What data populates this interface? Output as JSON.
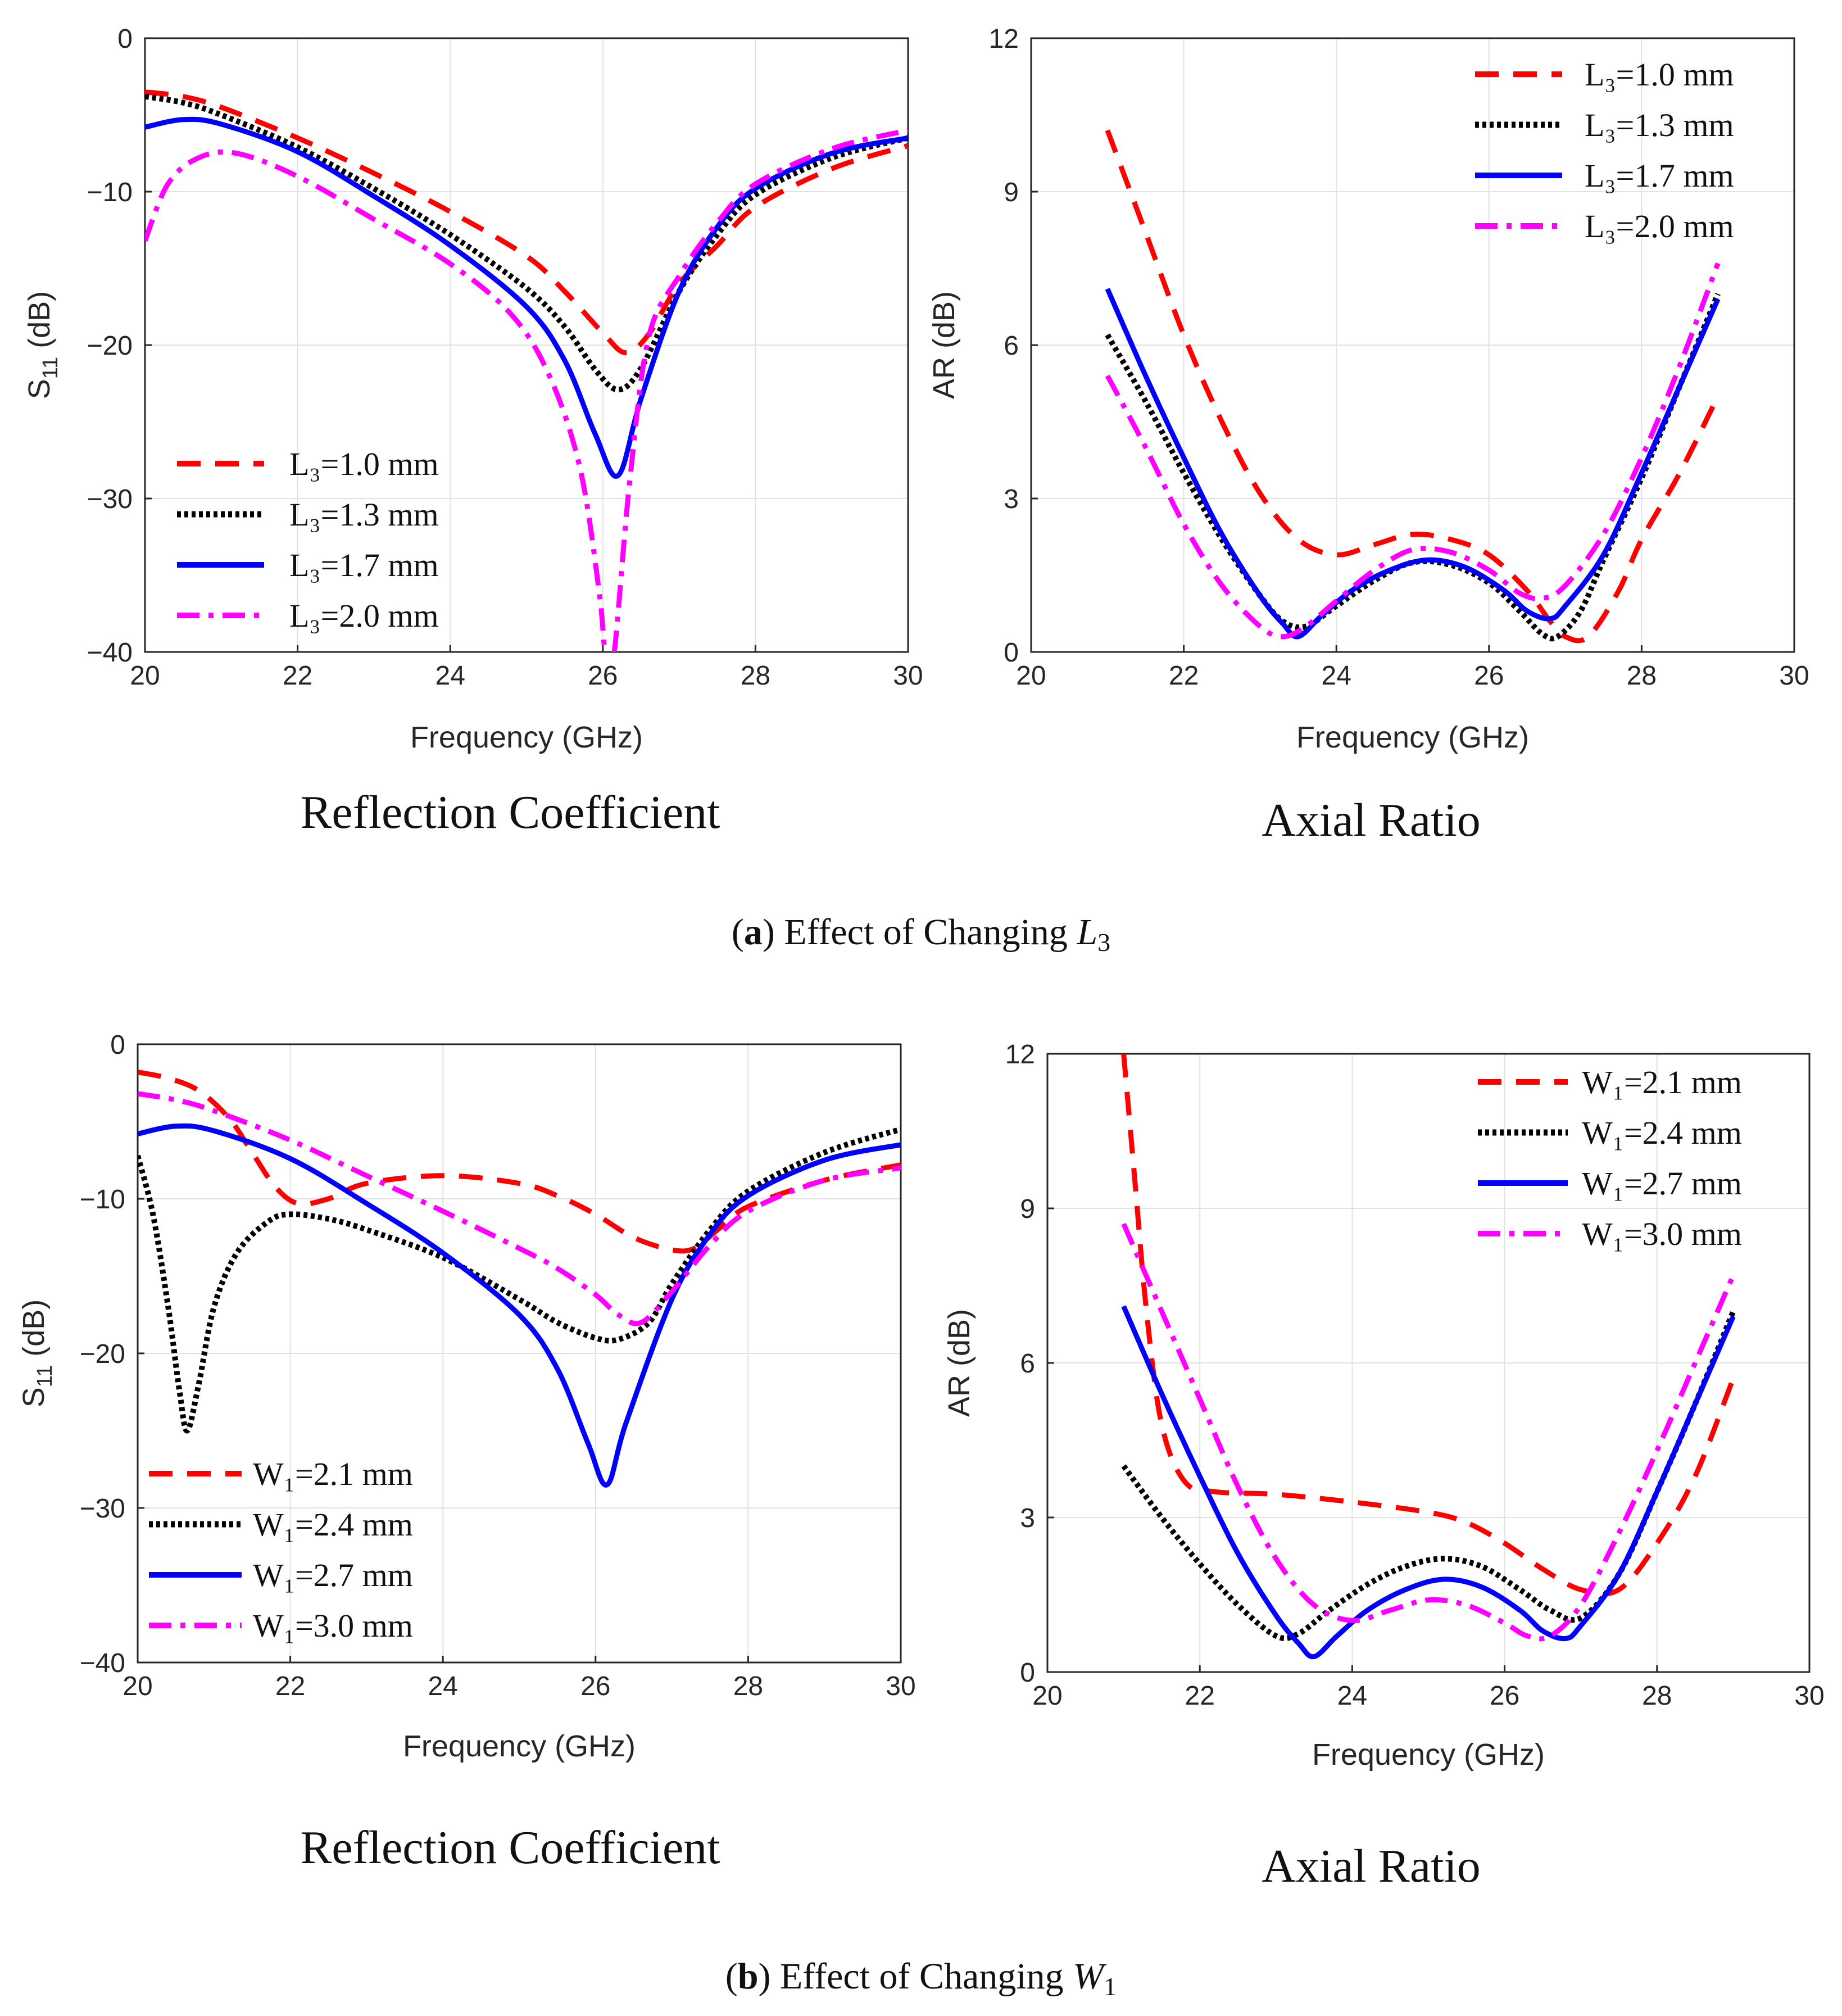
{
  "chart_data": [
    {
      "type": "line",
      "panel": "a-left",
      "title": "Reflection Coefficient",
      "xlabel": "Frequency (GHz)",
      "ylabel_main": "S",
      "ylabel_sub": "11",
      "ylabel_tail": " (dB)",
      "xlim": [
        20,
        30
      ],
      "ylim": [
        -40,
        0
      ],
      "xticks": [
        20,
        22,
        24,
        26,
        28,
        30
      ],
      "yticks": [
        0,
        -10,
        -20,
        -30,
        -40
      ],
      "xtick_labels": [
        "20",
        "22",
        "24",
        "26",
        "28",
        "30"
      ],
      "ytick_labels": [
        "0",
        "−10",
        "−20",
        "−30",
        "−40"
      ],
      "grid": true,
      "legend_position": "bottom-left",
      "series": [
        {
          "name": "L₃=1.0 mm",
          "color": "#ff0000",
          "style": "dashed",
          "x": [
            20,
            20.5,
            21,
            22,
            23,
            24,
            25,
            25.5,
            26,
            26.3,
            26.6,
            27,
            27.5,
            28,
            29,
            30
          ],
          "values": [
            -3.5,
            -3.8,
            -4.5,
            -6.5,
            -8.8,
            -11.3,
            -14.2,
            -16.5,
            -19.2,
            -20.5,
            -19.3,
            -16,
            -13.5,
            -11,
            -8.5,
            -7
          ]
        },
        {
          "name": "L₃=1.3 mm",
          "color": "#000000",
          "style": "dotted",
          "x": [
            20,
            20.5,
            21,
            22,
            23,
            24,
            25,
            25.5,
            25.9,
            26.2,
            26.5,
            27,
            27.5,
            28,
            29,
            30
          ],
          "values": [
            -3.8,
            -4.2,
            -5,
            -7.1,
            -9.8,
            -12.8,
            -16.3,
            -18.8,
            -21.6,
            -22.9,
            -21.5,
            -16.5,
            -12.8,
            -10.2,
            -7.8,
            -6.5
          ]
        },
        {
          "name": "L₃=1.7 mm",
          "color": "#0000ff",
          "style": "solid",
          "x": [
            20,
            20.5,
            21,
            22,
            23,
            24,
            25,
            25.5,
            25.9,
            26.2,
            26.5,
            27,
            27.5,
            28,
            29,
            30
          ],
          "values": [
            -5.8,
            -5.3,
            -5.6,
            -7.4,
            -10.3,
            -13.5,
            -17.5,
            -21,
            -25.8,
            -28.5,
            -23.5,
            -16.5,
            -12.3,
            -9.8,
            -7.5,
            -6.5
          ]
        },
        {
          "name": "L₃=2.0 mm",
          "color": "#ff00ff",
          "style": "dashdot",
          "x": [
            20,
            20.3,
            20.7,
            21.2,
            22,
            23,
            24,
            24.8,
            25.3,
            25.7,
            25.95,
            26.05,
            26.15,
            26.35,
            26.6,
            27,
            27.5,
            28,
            29,
            30
          ],
          "values": [
            -13.2,
            -9.5,
            -7.8,
            -7.5,
            -9,
            -11.8,
            -14.7,
            -18,
            -22,
            -28,
            -36,
            -41,
            -40,
            -29,
            -19.5,
            -15.5,
            -12,
            -9.5,
            -7.2,
            -6
          ]
        }
      ]
    },
    {
      "type": "line",
      "panel": "a-right",
      "title": "Axial Ratio",
      "xlabel": "Frequency (GHz)",
      "ylabel": "AR (dB)",
      "xlim": [
        20,
        30
      ],
      "ylim": [
        0,
        12
      ],
      "xticks": [
        20,
        22,
        24,
        26,
        28,
        30
      ],
      "yticks": [
        0,
        3,
        6,
        9,
        12
      ],
      "xtick_labels": [
        "20",
        "22",
        "24",
        "26",
        "28",
        "30"
      ],
      "ytick_labels": [
        "0",
        "3",
        "6",
        "9",
        "12"
      ],
      "grid": true,
      "legend_position": "top-right",
      "series": [
        {
          "name": "L₃=1.0 mm",
          "color": "#ff0000",
          "style": "dashed",
          "x": [
            21,
            21.5,
            22,
            22.5,
            23,
            23.5,
            24,
            24.5,
            25,
            25.5,
            26,
            26.5,
            26.8,
            27,
            27.3,
            27.7,
            28,
            28.5,
            29
          ],
          "values": [
            10.2,
            8.2,
            6.2,
            4.5,
            3.1,
            2.2,
            1.9,
            2.1,
            2.3,
            2.2,
            1.9,
            1.2,
            0.6,
            0.3,
            0.3,
            1.2,
            2.2,
            3.5,
            5
          ]
        },
        {
          "name": "L₃=1.3 mm",
          "color": "#000000",
          "style": "dotted",
          "x": [
            21,
            21.5,
            22,
            22.5,
            23,
            23.3,
            23.6,
            24,
            24.5,
            25,
            25.5,
            26,
            26.4,
            26.7,
            26.9,
            27.2,
            27.5,
            28,
            28.5,
            29
          ],
          "values": [
            6.2,
            4.9,
            3.5,
            2.2,
            1.1,
            0.6,
            0.5,
            0.9,
            1.4,
            1.75,
            1.7,
            1.35,
            0.8,
            0.35,
            0.3,
            0.8,
            1.8,
            3.4,
            5.2,
            7
          ]
        },
        {
          "name": "L₃=1.7 mm",
          "color": "#0000ff",
          "style": "solid",
          "x": [
            21,
            21.5,
            22,
            22.5,
            23,
            23.3,
            23.5,
            23.8,
            24.2,
            24.7,
            25.2,
            25.7,
            26.2,
            26.5,
            26.8,
            27,
            27.5,
            28,
            28.5,
            29
          ],
          "values": [
            7.1,
            5.4,
            3.8,
            2.3,
            1.1,
            0.55,
            0.3,
            0.7,
            1.2,
            1.6,
            1.8,
            1.65,
            1.2,
            0.8,
            0.65,
            0.9,
            1.9,
            3.5,
            5.2,
            6.9
          ]
        },
        {
          "name": "L₃=2.0 mm",
          "color": "#ff00ff",
          "style": "dashdot",
          "x": [
            21,
            21.5,
            22,
            22.5,
            23,
            23.3,
            23.6,
            24,
            24.5,
            25,
            25.5,
            26,
            26.4,
            26.7,
            27,
            27.5,
            28,
            28.5,
            29
          ],
          "values": [
            5.4,
            4,
            2.5,
            1.3,
            0.5,
            0.3,
            0.5,
            1,
            1.6,
            2,
            1.95,
            1.6,
            1.15,
            1.05,
            1.3,
            2.3,
            3.8,
            5.6,
            7.6
          ]
        }
      ]
    },
    {
      "type": "line",
      "panel": "b-left",
      "title": "Reflection Coefficient",
      "xlabel": "Frequency (GHz)",
      "ylabel_main": "S",
      "ylabel_sub": "11",
      "ylabel_tail": " (dB)",
      "xlim": [
        20,
        30
      ],
      "ylim": [
        -40,
        0
      ],
      "xticks": [
        20,
        22,
        24,
        26,
        28,
        30
      ],
      "yticks": [
        0,
        -10,
        -20,
        -30,
        -40
      ],
      "xtick_labels": [
        "20",
        "22",
        "24",
        "26",
        "28",
        "30"
      ],
      "ytick_labels": [
        "0",
        "−10",
        "−20",
        "−30",
        "−40"
      ],
      "grid": true,
      "legend_position": "bottom-left",
      "series": [
        {
          "name": "W₁=2.1 mm",
          "color": "#ff0000",
          "style": "dashed",
          "x": [
            20,
            20.4,
            20.8,
            21.2,
            21.5,
            21.8,
            22.1,
            22.5,
            23,
            24,
            25,
            25.5,
            26,
            26.5,
            27,
            27.3,
            27.6,
            28,
            29,
            30
          ],
          "values": [
            -1.8,
            -2.2,
            -3,
            -4.8,
            -7,
            -9.2,
            -10.3,
            -10,
            -9,
            -8.5,
            -9,
            -9.8,
            -11,
            -12.5,
            -13.3,
            -13.2,
            -12,
            -10.5,
            -8.8,
            -7.8
          ]
        },
        {
          "name": "W₁=2.4 mm",
          "color": "#000000",
          "style": "dotted",
          "x": [
            20,
            20.2,
            20.4,
            20.55,
            20.65,
            20.8,
            21,
            21.3,
            21.7,
            22,
            22.5,
            23,
            24,
            25,
            25.5,
            26,
            26.3,
            26.7,
            27,
            27.5,
            28,
            29,
            30
          ],
          "values": [
            -7.2,
            -11,
            -17,
            -22.5,
            -25,
            -22,
            -17,
            -13.5,
            -11.5,
            -11,
            -11.3,
            -12,
            -13.8,
            -16.5,
            -18,
            -19,
            -19.1,
            -18,
            -15.5,
            -12,
            -9.5,
            -7,
            -5.5
          ]
        },
        {
          "name": "W₁=2.7 mm",
          "color": "#0000ff",
          "style": "solid",
          "x": [
            20,
            20.5,
            21,
            22,
            23,
            24,
            25,
            25.5,
            25.9,
            26.15,
            26.4,
            27,
            27.5,
            28,
            29,
            30
          ],
          "values": [
            -5.8,
            -5.3,
            -5.6,
            -7.4,
            -10.3,
            -13.5,
            -17.5,
            -21,
            -25.8,
            -28.5,
            -24.5,
            -16.5,
            -12.3,
            -9.8,
            -7.5,
            -6.5
          ]
        },
        {
          "name": "W₁=3.0 mm",
          "color": "#ff00ff",
          "style": "dashdot",
          "x": [
            20,
            20.5,
            21,
            22,
            23,
            24,
            25,
            25.5,
            26,
            26.3,
            26.6,
            27,
            27.5,
            28,
            29,
            30
          ],
          "values": [
            -3.2,
            -3.6,
            -4.3,
            -6.2,
            -8.5,
            -10.8,
            -13.2,
            -14.5,
            -16.2,
            -17.5,
            -18,
            -16,
            -13,
            -10.8,
            -8.8,
            -8
          ]
        }
      ]
    },
    {
      "type": "line",
      "panel": "b-right",
      "title": "Axial Ratio",
      "xlabel": "Frequency (GHz)",
      "ylabel": "AR (dB)",
      "xlim": [
        20,
        30
      ],
      "ylim": [
        0,
        12
      ],
      "xticks": [
        20,
        22,
        24,
        26,
        28,
        30
      ],
      "yticks": [
        0,
        3,
        6,
        9,
        12
      ],
      "xtick_labels": [
        "20",
        "22",
        "24",
        "26",
        "28",
        "30"
      ],
      "ytick_labels": [
        "0",
        "3",
        "6",
        "9",
        "12"
      ],
      "grid": true,
      "legend_position": "top-right",
      "series": [
        {
          "name": "W₁=2.1 mm",
          "color": "#ff0000",
          "style": "dashed",
          "x": [
            21,
            21.15,
            21.3,
            21.5,
            21.8,
            22.2,
            23,
            24,
            25,
            25.5,
            26,
            26.5,
            27,
            27.5,
            28,
            28.5,
            29
          ],
          "values": [
            12,
            9.5,
            7,
            4.8,
            3.7,
            3.5,
            3.45,
            3.3,
            3.1,
            2.9,
            2.5,
            2,
            1.6,
            1.6,
            2.5,
            3.8,
            5.7
          ]
        },
        {
          "name": "W₁=2.4 mm",
          "color": "#000000",
          "style": "dotted",
          "x": [
            21,
            21.5,
            22,
            22.5,
            23,
            23.3,
            23.7,
            24.2,
            24.7,
            25.2,
            25.7,
            26.2,
            26.6,
            27,
            27.5,
            28,
            28.5,
            29
          ],
          "values": [
            4,
            3,
            2.1,
            1.3,
            0.7,
            0.75,
            1.2,
            1.7,
            2.05,
            2.2,
            2.05,
            1.6,
            1.2,
            1.05,
            1.9,
            3.5,
            5.2,
            7
          ]
        },
        {
          "name": "W₁=2.7 mm",
          "color": "#0000ff",
          "style": "solid",
          "x": [
            21,
            21.5,
            22,
            22.5,
            23,
            23.3,
            23.5,
            23.8,
            24.2,
            24.7,
            25.2,
            25.7,
            26.2,
            26.5,
            26.8,
            27,
            27.5,
            28,
            28.5,
            29
          ],
          "values": [
            7.1,
            5.4,
            3.8,
            2.3,
            1.1,
            0.55,
            0.3,
            0.7,
            1.2,
            1.6,
            1.8,
            1.65,
            1.2,
            0.8,
            0.65,
            0.9,
            1.9,
            3.5,
            5.2,
            6.9
          ]
        },
        {
          "name": "W₁=3.0 mm",
          "color": "#ff00ff",
          "style": "dashdot",
          "x": [
            21,
            21.5,
            22,
            22.5,
            23,
            23.5,
            24,
            24.5,
            25,
            25.5,
            26,
            26.3,
            26.6,
            27,
            27.5,
            28,
            28.5,
            29
          ],
          "values": [
            8.7,
            7,
            5.3,
            3.6,
            2.2,
            1.3,
            1,
            1.2,
            1.4,
            1.3,
            0.95,
            0.7,
            0.7,
            1.3,
            2.7,
            4.3,
            6,
            7.7
          ]
        }
      ]
    }
  ],
  "captions": {
    "a": {
      "label": "a",
      "open": "(",
      "close": ") ",
      "text": "Effect of Changing ",
      "var": "L",
      "sub": "3"
    },
    "b": {
      "label": "b",
      "open": "(",
      "close": ") ",
      "text": "Effect of Changing ",
      "var": "W",
      "sub": "1"
    }
  }
}
